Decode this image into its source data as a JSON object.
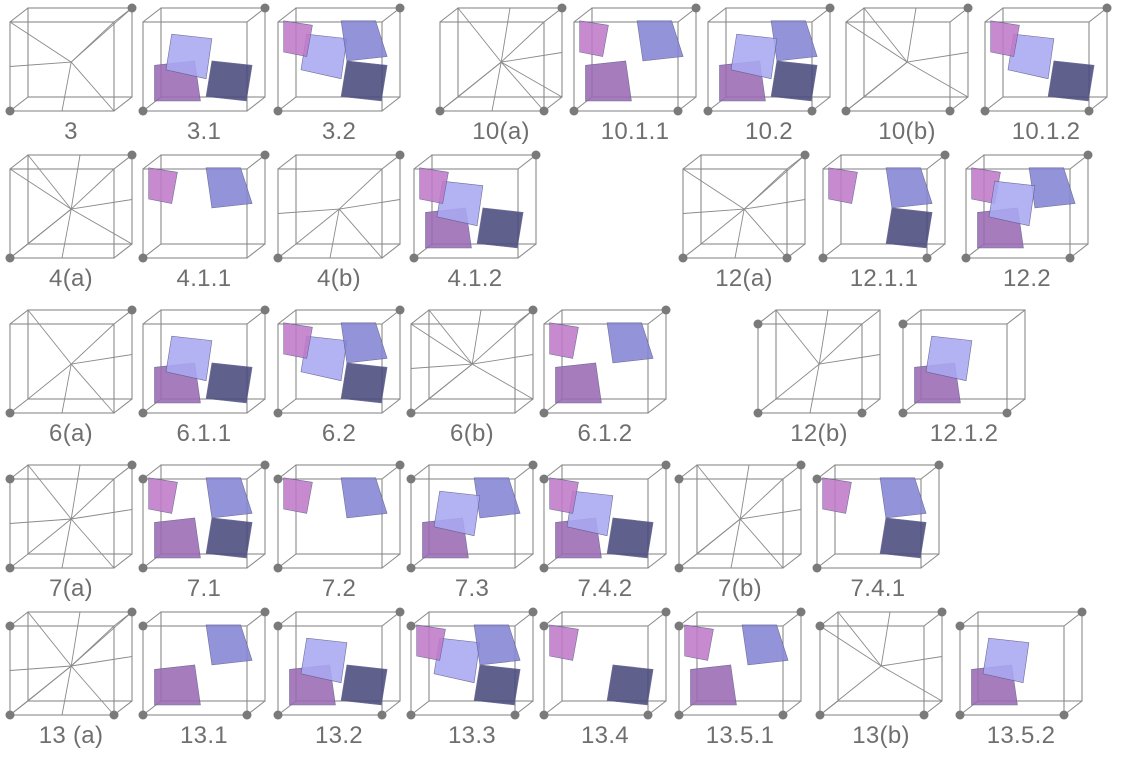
{
  "colors": {
    "background": "#ffffff",
    "edge": "#8a8a8a",
    "vertex": "#7a7a7a",
    "label": "#6f6f6f",
    "blue": "#8585d6",
    "light_blue": "#a9a9f2",
    "purple": "#9a6ab3",
    "dark": "#4b4b7d",
    "magenta": "#c07ac8"
  },
  "cases": [
    {
      "label": "3",
      "kind": "wire",
      "dots": [
        "tr",
        "bl"
      ]
    },
    {
      "label": "3.1",
      "kind": "surface",
      "dots": [
        "tr",
        "bl"
      ]
    },
    {
      "label": "3.2",
      "kind": "surface",
      "dots": [
        "tr",
        "bl"
      ]
    },
    {
      "label": "10(a)",
      "kind": "wire",
      "dots": [
        "tr",
        "br",
        "bl"
      ]
    },
    {
      "label": "10.1.1",
      "kind": "surface",
      "dots": [
        "tr",
        "br",
        "bl"
      ]
    },
    {
      "label": "10.2",
      "kind": "surface",
      "dots": [
        "tr",
        "br",
        "bl"
      ]
    },
    {
      "label": "10(b)",
      "kind": "wire",
      "dots": [
        "tr",
        "br",
        "bl"
      ]
    },
    {
      "label": "10.1.2",
      "kind": "surface",
      "dots": [
        "tr",
        "br",
        "bl"
      ]
    },
    {
      "label": "4(a)",
      "kind": "wire",
      "dots": [
        "tr",
        "bl"
      ]
    },
    {
      "label": "4.1.1",
      "kind": "surface",
      "dots": [
        "tr",
        "bl"
      ]
    },
    {
      "label": "4(b)",
      "kind": "wire",
      "dots": [
        "tr",
        "bl"
      ]
    },
    {
      "label": "4.1.2",
      "kind": "surface",
      "dots": [
        "tr",
        "bl"
      ]
    },
    {
      "label": "12(a)",
      "kind": "wire",
      "dots": [
        "tr",
        "bl",
        "br"
      ]
    },
    {
      "label": "12.1.1",
      "kind": "surface",
      "dots": [
        "tr",
        "bl",
        "br"
      ]
    },
    {
      "label": "12.2",
      "kind": "surface",
      "dots": [
        "tr",
        "bl",
        "br"
      ]
    },
    {
      "label": "6(a)",
      "kind": "wire",
      "dots": [
        "tr",
        "bl"
      ]
    },
    {
      "label": "6.1.1",
      "kind": "surface",
      "dots": [
        "tr",
        "bl"
      ]
    },
    {
      "label": "6.2",
      "kind": "surface",
      "dots": [
        "tr",
        "bl"
      ]
    },
    {
      "label": "6(b)",
      "kind": "wire",
      "dots": [
        "tr",
        "bl"
      ]
    },
    {
      "label": "6.1.2",
      "kind": "surface",
      "dots": [
        "tr",
        "bl"
      ]
    },
    {
      "label": "12(b)",
      "kind": "wire",
      "dots": [
        "tl",
        "bl",
        "br"
      ]
    },
    {
      "label": "12.1.2",
      "kind": "surface",
      "dots": [
        "tl",
        "bl",
        "br"
      ]
    },
    {
      "label": "7(a)",
      "kind": "wire",
      "dots": [
        "tl",
        "tr",
        "bl"
      ]
    },
    {
      "label": "7.1",
      "kind": "surface",
      "dots": [
        "tl",
        "tr",
        "bl"
      ]
    },
    {
      "label": "7.2",
      "kind": "surface",
      "dots": [
        "tl",
        "tr",
        "bl"
      ]
    },
    {
      "label": "7.3",
      "kind": "surface",
      "dots": [
        "tl",
        "tr",
        "bl"
      ]
    },
    {
      "label": "7.4.2",
      "kind": "surface",
      "dots": [
        "tl",
        "tr",
        "bl"
      ]
    },
    {
      "label": "7(b)",
      "kind": "wire",
      "dots": [
        "tl",
        "tr",
        "bl"
      ]
    },
    {
      "label": "7.4.1",
      "kind": "surface",
      "dots": [
        "tl",
        "tr",
        "bl"
      ]
    },
    {
      "label": "13 (a)",
      "kind": "wire",
      "dots": [
        "tl",
        "tr",
        "bl",
        "br"
      ]
    },
    {
      "label": "13.1",
      "kind": "surface",
      "dots": [
        "tl",
        "tr",
        "bl",
        "br"
      ]
    },
    {
      "label": "13.2",
      "kind": "surface",
      "dots": [
        "tl",
        "tr",
        "bl",
        "br"
      ]
    },
    {
      "label": "13.3",
      "kind": "surface",
      "dots": [
        "tl",
        "tr",
        "bl",
        "br"
      ]
    },
    {
      "label": "13.4",
      "kind": "surface",
      "dots": [
        "tl",
        "tr",
        "bl",
        "br"
      ]
    },
    {
      "label": "13.5.1",
      "kind": "surface",
      "dots": [
        "tl",
        "tr",
        "bl",
        "br"
      ]
    },
    {
      "label": "13(b)",
      "kind": "wire",
      "dots": [
        "tl",
        "tr",
        "bl",
        "br"
      ]
    },
    {
      "label": "13.5.2",
      "kind": "surface",
      "dots": [
        "tl",
        "tr",
        "bl",
        "br"
      ]
    }
  ]
}
